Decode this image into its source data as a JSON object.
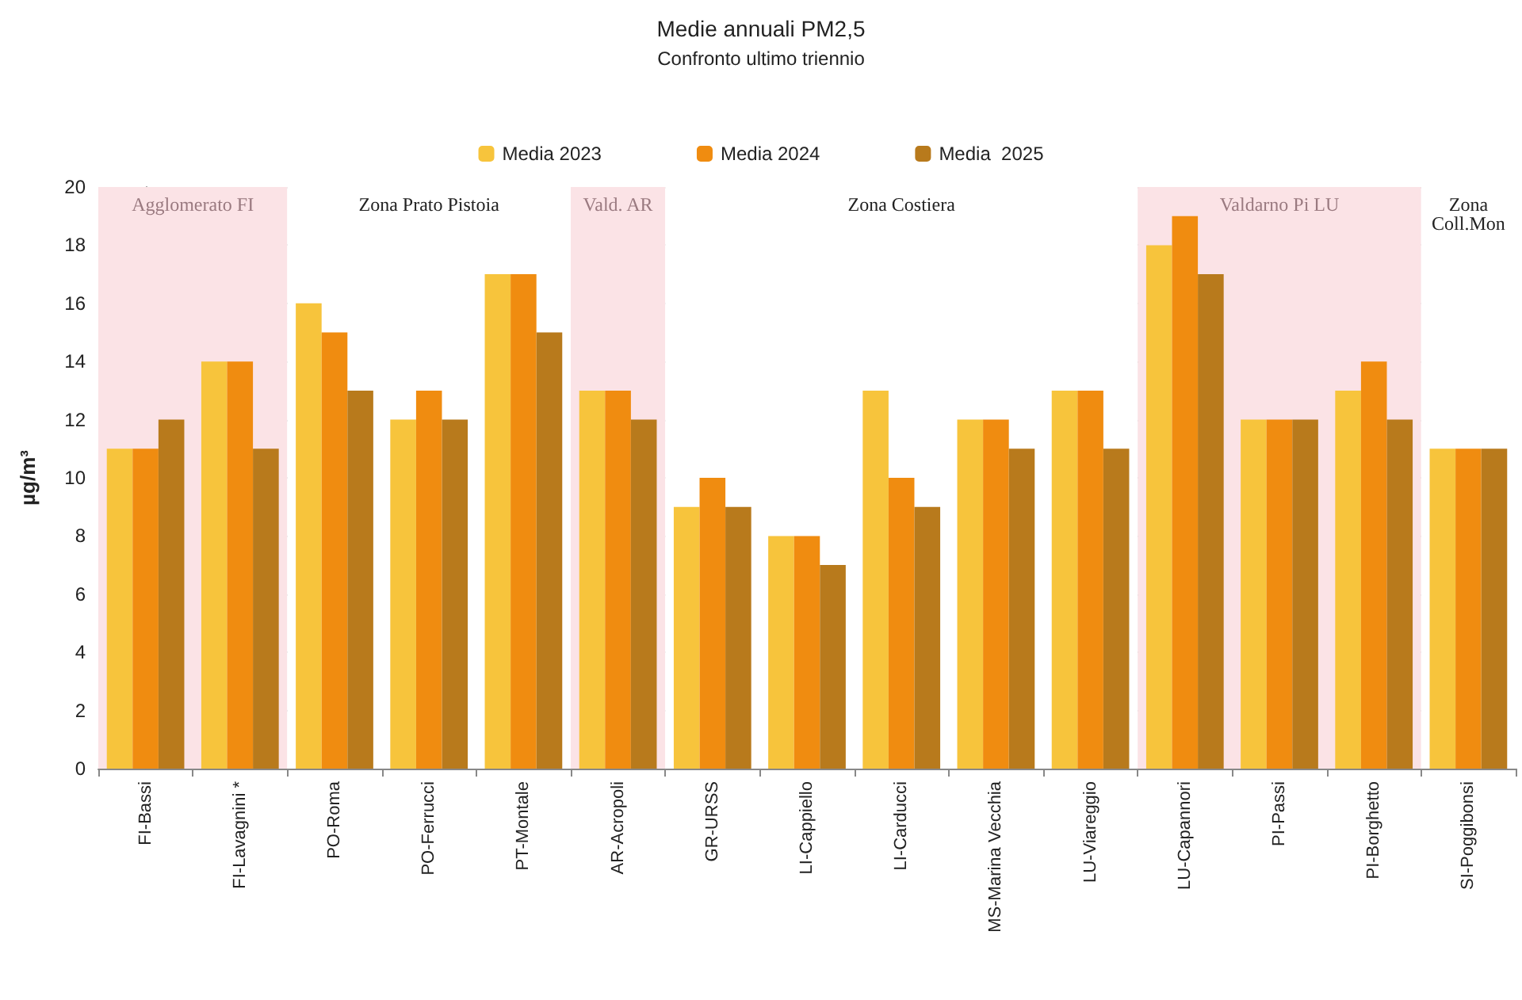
{
  "chart_data": {
    "type": "bar",
    "title": "Medie annuali PM2,5",
    "subtitle": "Confronto ultimo triennio",
    "ylabel": "µg/m³",
    "categories": [
      "FI-Bassi",
      "FI-Lavagnini *",
      "PO-Roma",
      "PO-Ferrucci",
      "PT-Montale",
      "AR-Acropoli",
      "GR-URSS",
      "LI-Cappiello",
      "LI-Carducci",
      "MS-Marina Vecchia",
      "LU-Viareggio",
      "LU-Capannori",
      "PI-Passi",
      "PI-Borghetto",
      "SI-Poggibonsi"
    ],
    "series": [
      {
        "name": "Media 2023",
        "color": "#f7c43c",
        "values": [
          11,
          14,
          16,
          12,
          17,
          13,
          9,
          8,
          13,
          12,
          13,
          18,
          12,
          13,
          11
        ]
      },
      {
        "name": "Media 2024",
        "color": "#f08c10",
        "values": [
          11,
          14,
          15,
          13,
          17,
          13,
          10,
          8,
          10,
          12,
          13,
          19,
          12,
          14,
          11
        ]
      },
      {
        "name": "Media  2025",
        "color": "#b87a1c",
        "values": [
          12,
          11,
          13,
          12,
          15,
          12,
          9,
          7,
          9,
          11,
          11,
          17,
          12,
          12,
          11
        ]
      }
    ],
    "ylim": [
      0,
      20
    ],
    "yticks": [
      0,
      2,
      4,
      6,
      8,
      10,
      12,
      14,
      16,
      18,
      20
    ],
    "grid": "y",
    "legend": "top",
    "bands": [
      {
        "axis": "x",
        "from": "FI-Bassi",
        "to": "FI-Lavagnini *",
        "label": "Agglomerato FI",
        "color": "#fbe3e6"
      },
      {
        "axis": "x",
        "from": "PO-Roma",
        "to": "PT-Montale",
        "label": "Zona Prato Pistoia",
        "color": "#ffffff"
      },
      {
        "axis": "x",
        "from": "AR-Acropoli",
        "to": "AR-Acropoli",
        "label": "Vald. AR",
        "color": "#fbe3e6"
      },
      {
        "axis": "x",
        "from": "GR-URSS",
        "to": "LU-Viareggio",
        "label": "Zona Costiera",
        "color": "#ffffff"
      },
      {
        "axis": "x",
        "from": "LU-Capannori",
        "to": "PI-Borghetto",
        "label": "Valdarno Pi LU",
        "color": "#fbe3e6"
      },
      {
        "axis": "x",
        "from": "SI-Poggibonsi",
        "to": "SI-Poggibonsi",
        "label": "Zona\nColl.Mon",
        "color": "#ffffff"
      }
    ]
  }
}
